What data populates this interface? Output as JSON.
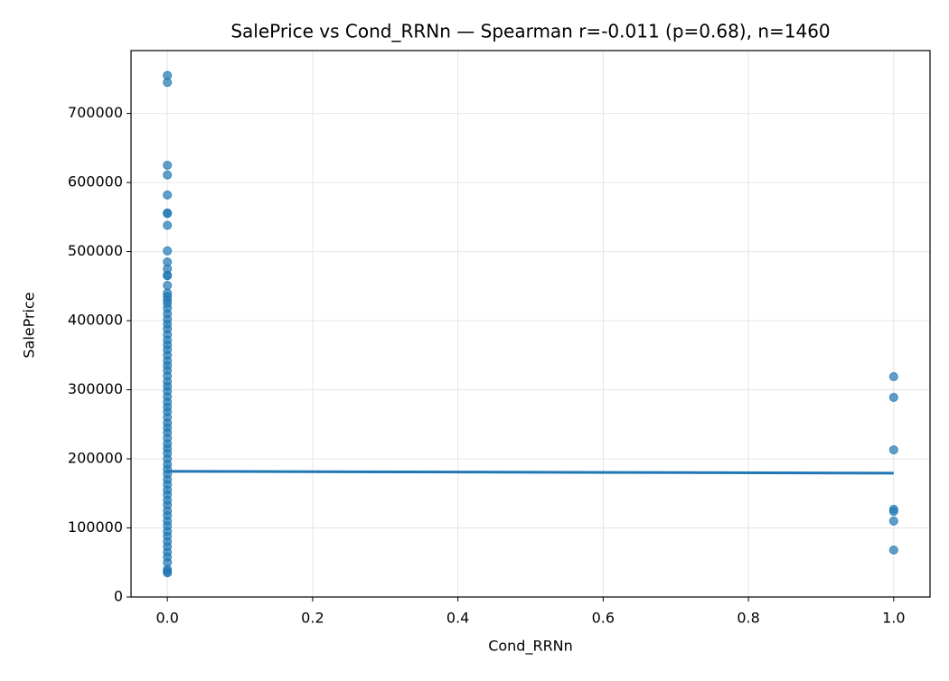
{
  "chart_data": {
    "type": "scatter",
    "title": "SalePrice vs Cond_RRNn — Spearman r=-0.011 (p=0.68), n=1460",
    "x_label": "Cond_RRNn",
    "y_label": "SalePrice",
    "xlim": [
      -0.05,
      1.05
    ],
    "xticks": [
      {
        "value": 0,
        "label": "0.0"
      },
      0.2,
      0.4,
      0.6,
      0.8,
      {
        "value": 1,
        "label": "1.0"
      }
    ],
    "ylim": [
      0,
      791000
    ],
    "yticks": [
      0,
      100000,
      200000,
      300000,
      400000,
      500000,
      600000,
      700000
    ],
    "grid": true,
    "series": [
      {
        "type": "scatter",
        "color": "#1f77b4",
        "x": [
          0,
          0,
          0,
          0,
          0,
          0,
          0,
          0,
          0,
          0,
          0,
          0,
          0,
          0,
          0,
          0,
          0,
          0,
          0,
          0,
          0,
          0,
          0,
          0,
          0,
          0,
          0,
          0,
          0,
          0,
          0,
          0,
          0,
          0,
          0,
          0,
          0,
          0,
          0,
          0,
          0,
          0,
          0,
          0,
          0,
          0,
          0,
          0,
          0,
          0,
          0,
          0,
          0,
          0,
          0,
          0,
          0,
          0,
          0,
          0,
          0,
          0,
          0,
          0,
          0,
          0,
          0,
          0,
          0,
          0,
          0,
          1,
          1,
          1,
          1,
          1,
          1,
          1
        ],
        "values": [
          755000,
          745000,
          625000,
          611000,
          582000,
          556000,
          555000,
          538000,
          501000,
          485000,
          475000,
          466000,
          465000,
          451000,
          440000,
          435000,
          430000,
          425000,
          418000,
          410000,
          402000,
          395000,
          388000,
          380000,
          372000,
          365000,
          358000,
          350000,
          342000,
          335000,
          328000,
          320000,
          312000,
          305000,
          298000,
          290000,
          282000,
          275000,
          268000,
          260000,
          252000,
          245000,
          238000,
          230000,
          222000,
          215000,
          208000,
          200000,
          192000,
          185000,
          178000,
          170000,
          163000,
          155000,
          148000,
          140000,
          133000,
          125000,
          118000,
          110000,
          103000,
          95000,
          88000,
          80000,
          73000,
          65000,
          58000,
          50000,
          40000,
          37000,
          35000,
          319000,
          289000,
          213000,
          127000,
          124000,
          110000,
          68000
        ]
      },
      {
        "type": "line",
        "color": "#1f77b4",
        "x": [
          0,
          1
        ],
        "values": [
          181900,
          179300
        ]
      }
    ]
  }
}
